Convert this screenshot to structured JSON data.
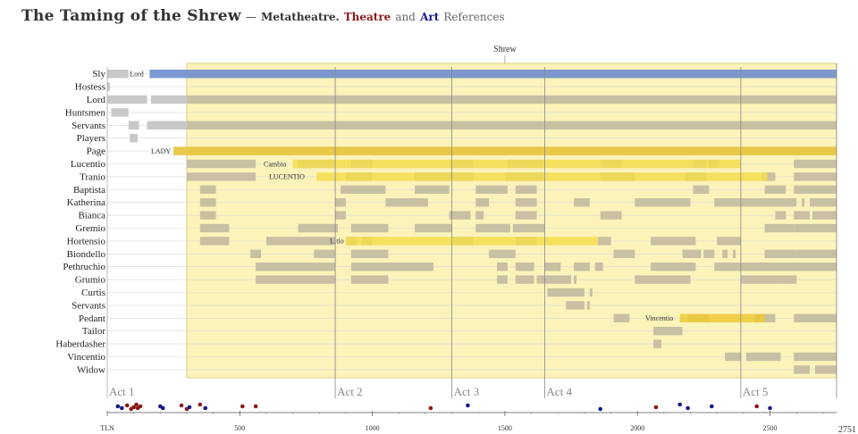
{
  "title": {
    "play": "The Taming of the Shrew",
    "dash": "—",
    "meta": "Metatheatre.",
    "theatre": "Theatre",
    "and": "and",
    "art": "Art",
    "refs": "References"
  },
  "chart_data": {
    "type": "timeline",
    "title": "The Taming of the Shrew — Metatheatre. Theatre and Art References",
    "x_axis": {
      "range": [
        0,
        2751
      ],
      "ticks": [
        "TLN",
        "500",
        "1000",
        "1500",
        "2000",
        "2500"
      ],
      "end_label": "2751"
    },
    "frame_label": "Shrew",
    "frame_range": [
      300,
      2751
    ],
    "acts": [
      {
        "label": "Act 1",
        "start": 0
      },
      {
        "label": "Act 2",
        "start": 860
      },
      {
        "label": "Act 3",
        "start": 1300
      },
      {
        "label": "Act 4",
        "start": 1650
      },
      {
        "label": "Act 5",
        "start": 2390
      }
    ],
    "characters": [
      "Sly",
      "Hostess",
      "Lord",
      "Huntsmen",
      "Servants",
      "Players",
      "Page",
      "Lucentio",
      "Tranio",
      "Baptista",
      "Katherina",
      "Bianca",
      "Gremio",
      "Hortensio",
      "Biondello",
      "Pethruchio",
      "Grumio",
      "Curtis",
      "Servants",
      "Pedant",
      "Tailor",
      "Haberdasher",
      "Vincentio",
      "Widow"
    ],
    "appearances": [
      [
        [
          0,
          80
        ],
        [
          160,
          300
        ],
        [
          300,
          2751
        ]
      ],
      [
        [
          0,
          10
        ]
      ],
      [
        [
          0,
          150
        ],
        [
          165,
          300
        ],
        [
          300,
          2751
        ]
      ],
      [
        [
          15,
          80
        ]
      ],
      [
        [
          80,
          120
        ],
        [
          150,
          300
        ],
        [
          300,
          2751
        ]
      ],
      [
        [
          85,
          115
        ]
      ],
      [
        [
          250,
          300
        ],
        [
          300,
          2751
        ]
      ],
      [
        [
          300,
          560
        ],
        [
          720,
          860
        ],
        [
          920,
          1000
        ],
        [
          1290,
          1380
        ],
        [
          1510,
          1650
        ],
        [
          1860,
          1940
        ],
        [
          2210,
          2260
        ],
        [
          2270,
          2310
        ],
        [
          2590,
          2751
        ]
      ],
      [
        [
          300,
          560
        ],
        [
          900,
          1000
        ],
        [
          1160,
          1380
        ],
        [
          1500,
          1650
        ],
        [
          1860,
          1990
        ],
        [
          2180,
          2260
        ],
        [
          2470,
          2520
        ],
        [
          2590,
          2751
        ]
      ],
      [
        [
          350,
          410
        ],
        [
          880,
          1050
        ],
        [
          1160,
          1290
        ],
        [
          1390,
          1510
        ],
        [
          1540,
          1620
        ],
        [
          2210,
          2270
        ],
        [
          2480,
          2560
        ],
        [
          2590,
          2751
        ]
      ],
      [
        [
          350,
          410
        ],
        [
          860,
          900
        ],
        [
          1050,
          1210
        ],
        [
          1390,
          1440
        ],
        [
          1540,
          1620
        ],
        [
          1760,
          1820
        ],
        [
          1990,
          2200
        ],
        [
          2290,
          2380
        ],
        [
          2380,
          2600
        ],
        [
          2620,
          2630
        ],
        [
          2650,
          2751
        ]
      ],
      [
        [
          350,
          410
        ],
        [
          860,
          900
        ],
        [
          1290,
          1370
        ],
        [
          1390,
          1420
        ],
        [
          1540,
          1620
        ],
        [
          1860,
          1940
        ],
        [
          2520,
          2560
        ],
        [
          2590,
          2650
        ],
        [
          2660,
          2751
        ]
      ],
      [
        [
          350,
          460
        ],
        [
          720,
          870
        ],
        [
          920,
          1060
        ],
        [
          1160,
          1300
        ],
        [
          1390,
          1520
        ],
        [
          1530,
          1650
        ],
        [
          2480,
          2590
        ],
        [
          2590,
          2751
        ]
      ],
      [
        [
          350,
          460
        ],
        [
          600,
          860
        ],
        [
          900,
          940
        ],
        [
          960,
          1000
        ],
        [
          1300,
          1380
        ],
        [
          1540,
          1620
        ],
        [
          1850,
          1900
        ],
        [
          2050,
          2220
        ],
        [
          2300,
          2390
        ]
      ],
      [
        [
          540,
          580
        ],
        [
          780,
          860
        ],
        [
          920,
          1060
        ],
        [
          1440,
          1540
        ],
        [
          1910,
          1990
        ],
        [
          2170,
          2240
        ],
        [
          2250,
          2290
        ],
        [
          2320,
          2340
        ],
        [
          2360,
          2370
        ],
        [
          2480,
          2600
        ],
        [
          2600,
          2751
        ]
      ],
      [
        [
          560,
          860
        ],
        [
          920,
          1230
        ],
        [
          1470,
          1510
        ],
        [
          1540,
          1610
        ],
        [
          1650,
          1710
        ],
        [
          1760,
          1820
        ],
        [
          1840,
          1870
        ],
        [
          2050,
          2220
        ],
        [
          2290,
          2380
        ],
        [
          2380,
          2751
        ]
      ],
      [
        [
          560,
          860
        ],
        [
          920,
          1060
        ],
        [
          1470,
          1510
        ],
        [
          1540,
          1610
        ],
        [
          1620,
          1750
        ],
        [
          1760,
          1770
        ],
        [
          1990,
          2200
        ],
        [
          2390,
          2530
        ],
        [
          2530,
          2600
        ]
      ],
      [
        [
          1660,
          1800
        ],
        [
          1820,
          1830
        ]
      ],
      [
        [
          1730,
          1800
        ],
        [
          1810,
          1820
        ]
      ],
      [
        [
          1910,
          1970
        ],
        [
          2190,
          2270
        ],
        [
          2440,
          2520
        ],
        [
          2590,
          2751
        ]
      ],
      [
        [
          2060,
          2170
        ]
      ],
      [
        [
          2060,
          2090
        ]
      ],
      [
        [
          2330,
          2390
        ],
        [
          2410,
          2540
        ],
        [
          2590,
          2751
        ]
      ],
      [
        [
          2590,
          2650
        ],
        [
          2670,
          2751
        ]
      ]
    ],
    "role_bars": [
      {
        "row": 0,
        "start": 160,
        "end": 2751,
        "color": "#6f8fd6",
        "label": "Lord",
        "label_at": 85
      },
      {
        "row": 6,
        "start": 250,
        "end": 2751,
        "color": "#efc936",
        "label": "LADY",
        "label_at": 165
      },
      {
        "row": 7,
        "start": 700,
        "end": 2390,
        "color": "#f5dc4d",
        "label": "Cambio",
        "label_at": 590
      },
      {
        "row": 8,
        "start": 790,
        "end": 2490,
        "color": "#f5dc4d",
        "label": "LUCENTIO",
        "label_at": 610
      },
      {
        "row": 13,
        "start": 900,
        "end": 1850,
        "color": "#f5dc4d",
        "label": "Litio",
        "label_at": 840
      },
      {
        "row": 19,
        "start": 2160,
        "end": 2480,
        "color": "#efc936",
        "label": "Vincentio",
        "label_at": 2030
      }
    ],
    "references": [
      {
        "x": 40,
        "color": "#1a1a8b"
      },
      {
        "x": 55,
        "color": "#1a1a8b"
      },
      {
        "x": 75,
        "color": "#8b1a1a"
      },
      {
        "x": 90,
        "color": "#8b1a1a"
      },
      {
        "x": 100,
        "color": "#8b1a1a"
      },
      {
        "x": 110,
        "color": "#8b1a1a"
      },
      {
        "x": 115,
        "color": "#8b1a1a"
      },
      {
        "x": 125,
        "color": "#8b1a1a"
      },
      {
        "x": 200,
        "color": "#1a1a8b"
      },
      {
        "x": 210,
        "color": "#1a1a8b"
      },
      {
        "x": 280,
        "color": "#8b1a1a"
      },
      {
        "x": 300,
        "color": "#8b1a1a"
      },
      {
        "x": 310,
        "color": "#1a1a8b"
      },
      {
        "x": 350,
        "color": "#8b1a1a"
      },
      {
        "x": 370,
        "color": "#1a1a8b"
      },
      {
        "x": 510,
        "color": "#8b1a1a"
      },
      {
        "x": 560,
        "color": "#8b1a1a"
      },
      {
        "x": 1220,
        "color": "#8b1a1a"
      },
      {
        "x": 1360,
        "color": "#1a1a8b"
      },
      {
        "x": 1860,
        "color": "#1a1a8b"
      },
      {
        "x": 2070,
        "color": "#8b1a1a"
      },
      {
        "x": 2160,
        "color": "#1a1a8b"
      },
      {
        "x": 2190,
        "color": "#1a1a8b"
      },
      {
        "x": 2280,
        "color": "#1a1a8b"
      },
      {
        "x": 2450,
        "color": "#8b1a1a"
      },
      {
        "x": 2500,
        "color": "#1a1a8b"
      }
    ],
    "colors": {
      "frame_fill": "#fbf3b9",
      "frame_border": "#d9c46a",
      "appearance": "#c8c0a3",
      "appearance_outside": "#c8c8c8",
      "theatre": "#8b1a1a",
      "art": "#1a1a8b"
    }
  }
}
